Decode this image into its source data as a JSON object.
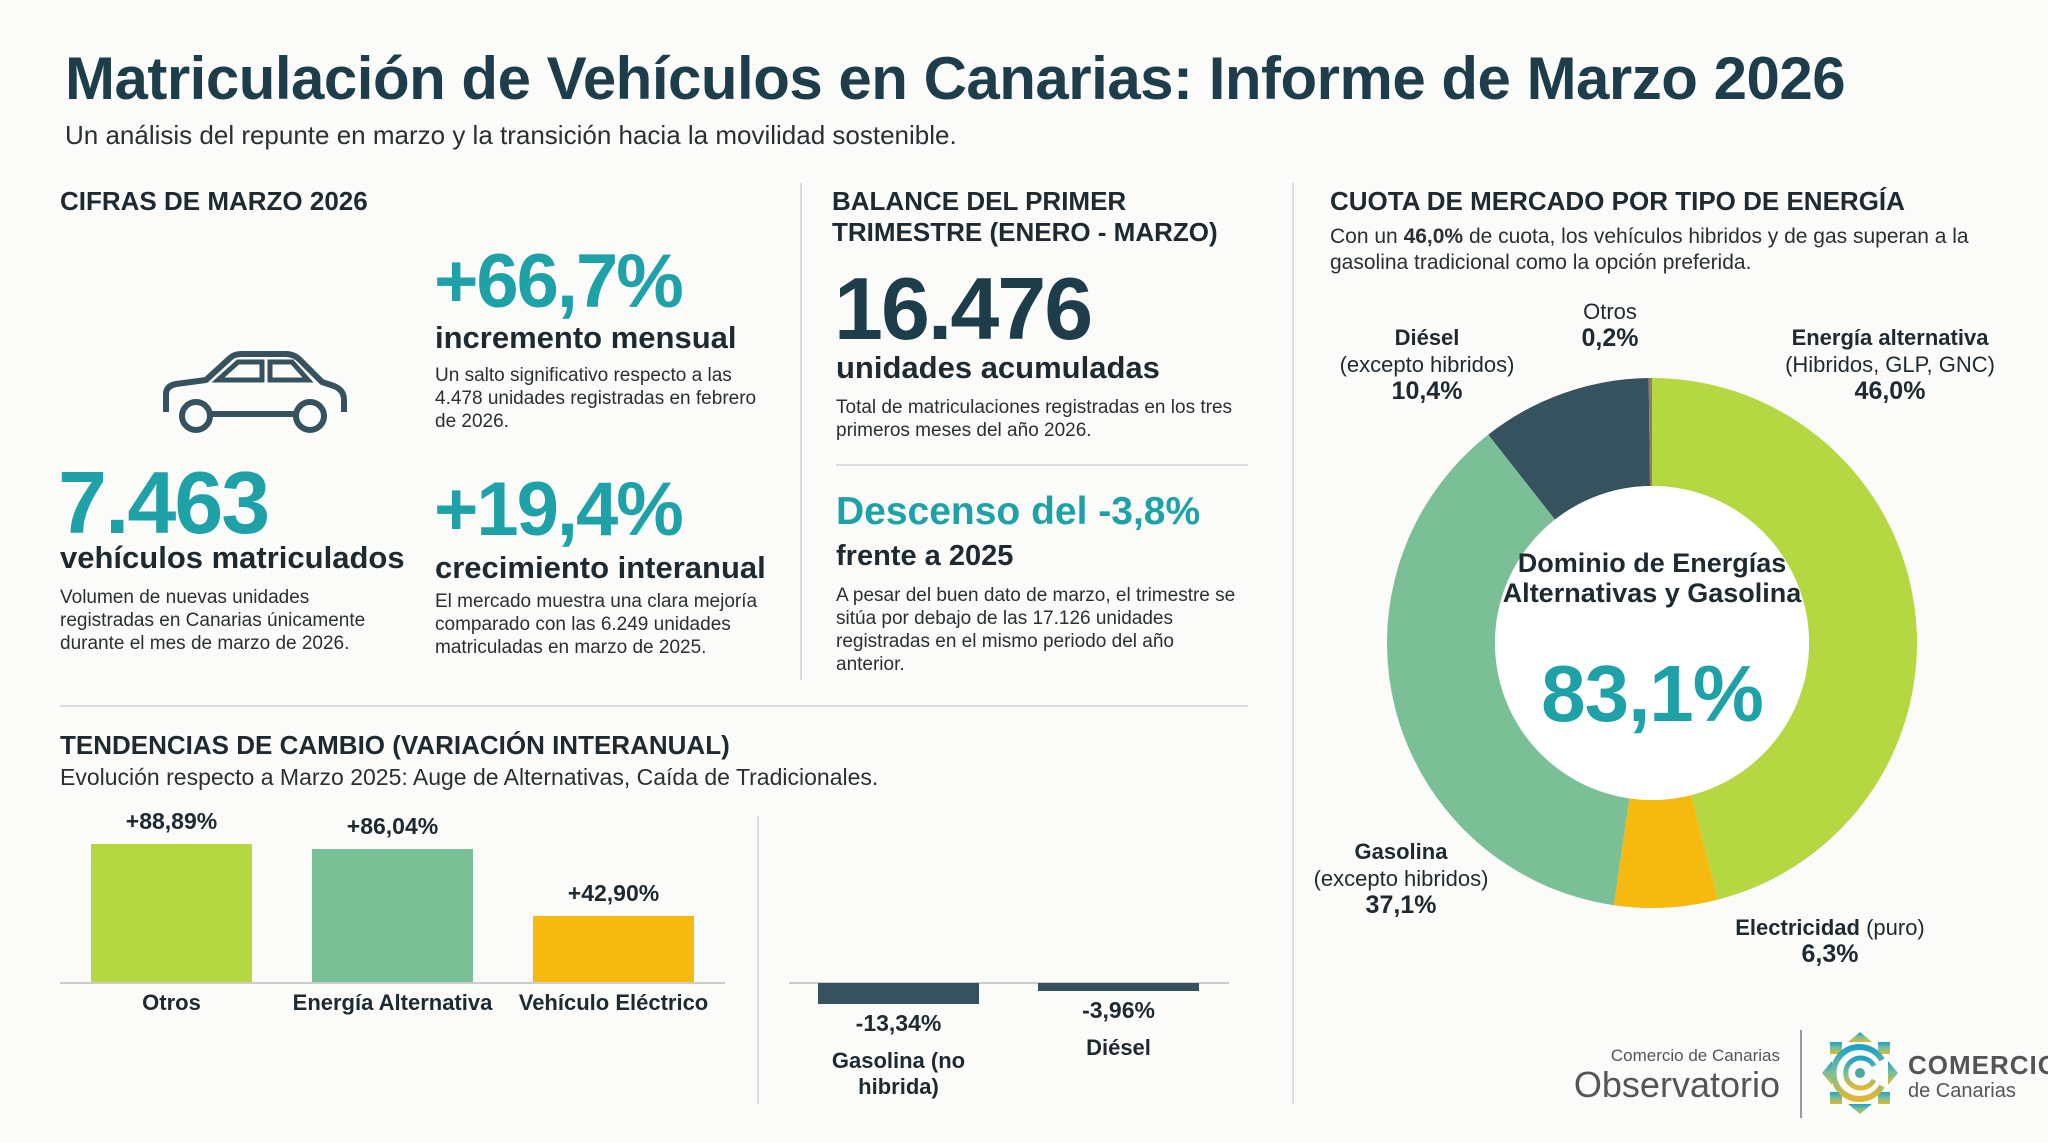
{
  "header": {
    "title": "Matriculación de Vehículos en Canarias: Informe de Marzo 2026",
    "subtitle": "Un análisis del repunte en marzo y la transición hacia la movilidad sostenible."
  },
  "cifras": {
    "heading": "CIFRAS DE MARZO 2026",
    "icon": "car-icon",
    "total": "7.463",
    "total_label": "vehículos matriculados",
    "total_desc": "Volumen de nuevas unidades registradas en Canarias únicamente durante el mes de marzo de 2026.",
    "monthly": "+66,7%",
    "monthly_label": "incremento mensual",
    "monthly_desc": "Un salto significativo respecto a las 4.478 unidades registradas en febrero de 2026.",
    "yearly": "+19,4%",
    "yearly_label": "crecimiento interanual",
    "yearly_desc": "El mercado muestra una clara mejoría comparado con las 6.249 unidades matriculadas en marzo de 2025."
  },
  "balance": {
    "heading": "BALANCE DEL PRIMER TRIMESTRE (ENERO - MARZO)",
    "total": "16.476",
    "total_label": "unidades acumuladas",
    "total_desc": "Total de matriculaciones registradas en los tres primeros meses del año 2026.",
    "change": "Descenso del -3,8%",
    "change_label": "frente a 2025",
    "change_desc": "A pesar del buen dato de marzo, el trimestre se sitúa por debajo de las 17.126 unidades registradas en el mismo periodo del año anterior."
  },
  "colors": {
    "teal": "#1fa1a8",
    "dark": "#37525f",
    "lime": "#b5d842",
    "green": "#7bbf97",
    "yellow": "#f5b90f",
    "otros": "#9a7a5a"
  },
  "chart_data": [
    {
      "type": "bar",
      "title": "TENDENCIAS DE CAMBIO (VARIACIÓN INTERANUAL)",
      "subtitle": "Evolución respecto a Marzo 2025: Auge de Alternativas, Caída de Tradicionales.",
      "categories": [
        "Otros",
        "Energía Alternativa",
        "Vehículo Eléctrico",
        "Gasolina (no hibrida)",
        "Diésel"
      ],
      "values": [
        88.89,
        86.04,
        42.9,
        -13.34,
        -3.96
      ],
      "value_labels": [
        "+88,89%",
        "+86,04%",
        "+42,90%",
        "-13,34%",
        "-3,96%"
      ],
      "colors": [
        "#b5d842",
        "#7bbf97",
        "#f5b90f",
        "#37525f",
        "#37525f"
      ]
    },
    {
      "type": "pie",
      "variant": "donut",
      "title": "CUOTA DE MERCADO POR TIPO DE ENERGÍA",
      "desc_pre": "Con un ",
      "desc_bold": "46,0%",
      "desc_post": " de cuota, los vehículos hibridos y de gas superan a la gasolina tradicional como la opción preferida.",
      "center_title": "Dominio de Energías Alternativas y Gasolina",
      "center_value": "83,1%",
      "slices": [
        {
          "name": "Energía alternativa",
          "detail": "(Hibridos, GLP, GNC)",
          "value": 46.0,
          "label": "46,0%",
          "color": "#b5d842"
        },
        {
          "name": "Electricidad",
          "detail": "(puro)",
          "value": 6.3,
          "label": "6,3%",
          "color": "#f5b90f"
        },
        {
          "name": "Gasolina",
          "detail": "(excepto hibridos)",
          "value": 37.1,
          "label": "37,1%",
          "color": "#7bbf97"
        },
        {
          "name": "Diésel",
          "detail": "(excepto hibridos)",
          "value": 10.4,
          "label": "10,4%",
          "color": "#37525f"
        },
        {
          "name": "Otros",
          "detail": "",
          "value": 0.2,
          "label": "0,2%",
          "color": "#9a7a5a"
        }
      ]
    }
  ],
  "footer": {
    "obs_top": "Comercio de Canarias",
    "obs_main": "Observatorio",
    "logo_main": "COMERCIO",
    "logo_sub": "de Canarias"
  }
}
